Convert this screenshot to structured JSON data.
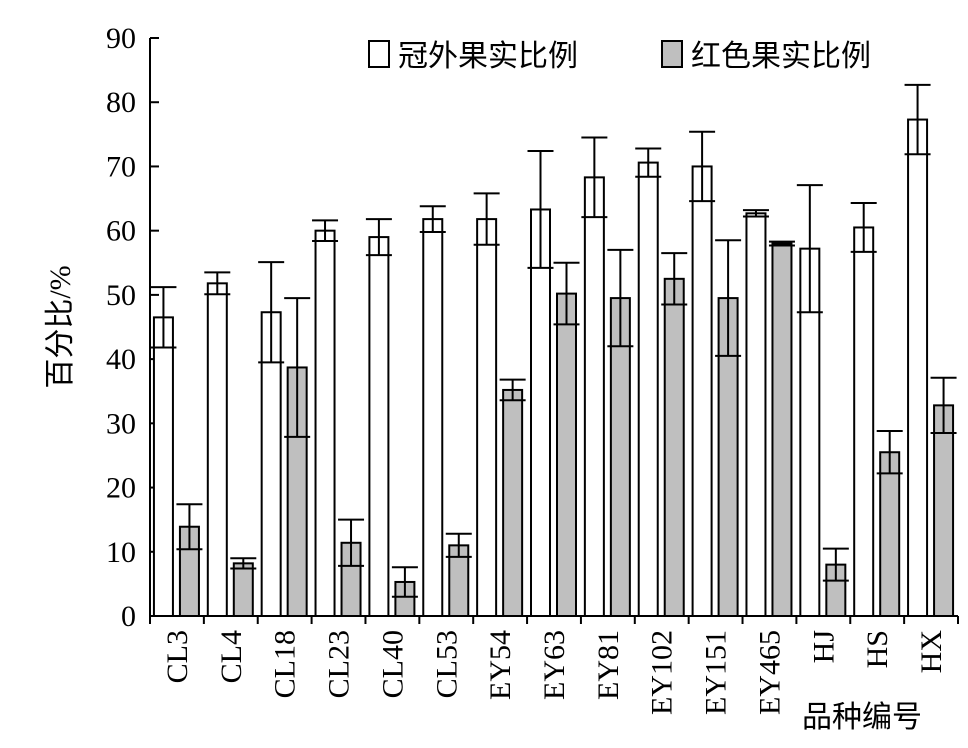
{
  "chart_data": {
    "type": "bar",
    "ylabel": "百分比/%",
    "xlabel": "品种编号",
    "ylim": [
      0,
      90
    ],
    "yticks": [
      0,
      10,
      20,
      30,
      40,
      50,
      60,
      70,
      80,
      90
    ],
    "legend_position": "top-right",
    "grid": false,
    "categories": [
      "CL3",
      "CL4",
      "CL18",
      "CL23",
      "CL40",
      "CL53",
      "EY54",
      "EY63",
      "EY81",
      "EY102",
      "EY151",
      "EY465",
      "HJ",
      "HS",
      "HX"
    ],
    "series": [
      {
        "name": "冠外果实比例",
        "color": "#ffffff",
        "values": [
          46.5,
          51.8,
          47.3,
          60.0,
          59.0,
          61.8,
          61.8,
          63.3,
          68.3,
          70.6,
          70.0,
          62.7,
          57.2,
          60.5,
          77.3
        ],
        "errors": [
          4.7,
          1.7,
          7.8,
          1.6,
          2.8,
          2.0,
          4.0,
          9.1,
          6.2,
          2.2,
          5.4,
          0.5,
          9.9,
          3.8,
          5.4
        ]
      },
      {
        "name": "红色果实比例",
        "color": "#bfbfbf",
        "values": [
          13.9,
          8.2,
          38.7,
          11.4,
          5.3,
          11.0,
          35.2,
          50.2,
          49.5,
          52.5,
          49.5,
          58.0,
          8.0,
          25.5,
          32.8
        ],
        "errors": [
          3.5,
          0.8,
          10.8,
          3.6,
          2.3,
          1.8,
          1.6,
          4.8,
          7.5,
          4.0,
          9.0,
          0.3,
          2.5,
          3.3,
          4.3
        ]
      }
    ]
  }
}
